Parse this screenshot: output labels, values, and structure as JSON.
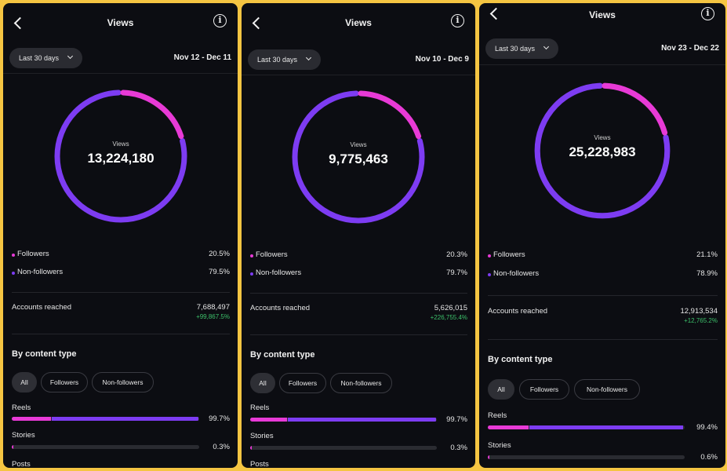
{
  "colors": {
    "followers": "#e83ad6",
    "non_followers": "#7d3cf2",
    "positive": "#3cc06a"
  },
  "panels": [
    {
      "title": "Views",
      "range_label": "Last 30 days",
      "dates": "Nov 12 - Dec 11",
      "donut_label": "Views",
      "total": "13,224,180",
      "followers_label": "Followers",
      "followers_pct": "20.5%",
      "followers_share": 0.205,
      "nonfollowers_label": "Non-followers",
      "nonfollowers_pct": "79.5%",
      "reached_label": "Accounts reached",
      "reached_value": "7,688,497",
      "reached_change": "+99,867.5%",
      "section_title": "By content type",
      "filters": [
        "All",
        "Followers",
        "Non-followers"
      ],
      "content": [
        {
          "label": "Reels",
          "pct": "99.7%",
          "share": 0.997,
          "followers_part": 0.21
        },
        {
          "label": "Stories",
          "pct": "0.3%",
          "share": 0.003,
          "followers_part": 0.0
        },
        {
          "label": "Posts"
        }
      ]
    },
    {
      "title": "Views",
      "range_label": "Last 30 days",
      "dates": "Nov 10 - Dec 9",
      "donut_label": "Views",
      "total": "9,775,463",
      "followers_label": "Followers",
      "followers_pct": "20.3%",
      "followers_share": 0.203,
      "nonfollowers_label": "Non-followers",
      "nonfollowers_pct": "79.7%",
      "reached_label": "Accounts reached",
      "reached_value": "5,626,015",
      "reached_change": "+226,755.4%",
      "section_title": "By content type",
      "filters": [
        "All",
        "Followers",
        "Non-followers"
      ],
      "content": [
        {
          "label": "Reels",
          "pct": "99.7%",
          "share": 0.997,
          "followers_part": 0.2
        },
        {
          "label": "Stories",
          "pct": "0.3%",
          "share": 0.003,
          "followers_part": 0.0
        },
        {
          "label": "Posts"
        }
      ]
    },
    {
      "title": "Views",
      "range_label": "Last 30 days",
      "dates": "Nov 23 - Dec 22",
      "donut_label": "Views",
      "total": "25,228,983",
      "followers_label": "Followers",
      "followers_pct": "21.1%",
      "followers_share": 0.211,
      "nonfollowers_label": "Non-followers",
      "nonfollowers_pct": "78.9%",
      "reached_label": "Accounts reached",
      "reached_value": "12,913,534",
      "reached_change": "+12,765.2%",
      "section_title": "By content type",
      "filters": [
        "All",
        "Followers",
        "Non-followers"
      ],
      "content": [
        {
          "label": "Reels",
          "pct": "99.4%",
          "share": 0.994,
          "followers_part": 0.21
        },
        {
          "label": "Stories",
          "pct": "0.6%",
          "share": 0.006,
          "followers_part": 0.0
        }
      ]
    }
  ]
}
